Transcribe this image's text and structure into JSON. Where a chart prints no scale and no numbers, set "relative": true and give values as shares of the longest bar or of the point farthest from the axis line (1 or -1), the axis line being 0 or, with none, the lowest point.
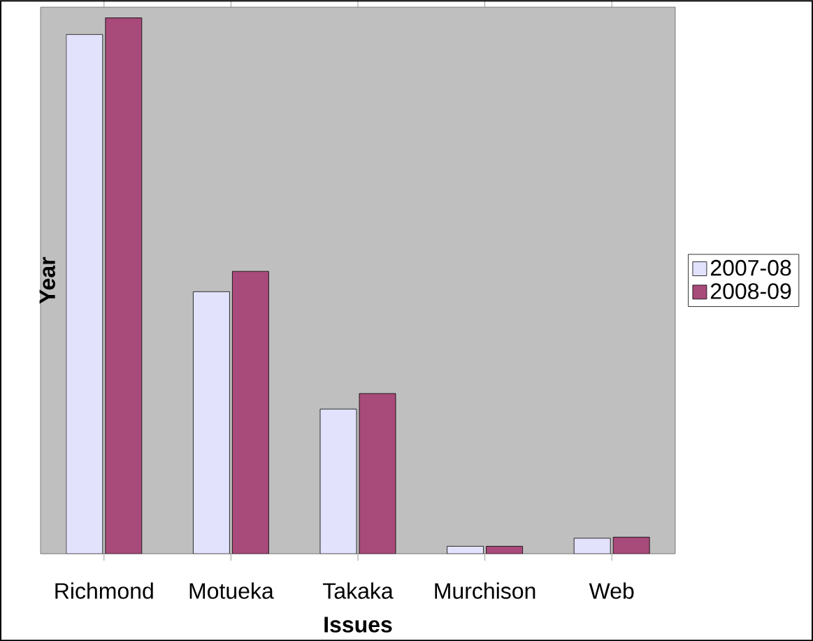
{
  "chart_data": {
    "type": "bar",
    "xlabel": "Issues",
    "ylabel": "Year",
    "relative": true,
    "legend": "right",
    "categories": [
      "Richmond",
      "Motueka",
      "Takaka",
      "Murchison",
      "Web"
    ],
    "series": [
      {
        "name": "2007-08",
        "color": "#e2e2fc",
        "values": [
          0.969,
          0.489,
          0.27,
          0.014,
          0.029
        ]
      },
      {
        "name": "2008-09",
        "color": "#a84a7a",
        "values": [
          1,
          0.527,
          0.299,
          0.014,
          0.031
        ]
      }
    ]
  }
}
